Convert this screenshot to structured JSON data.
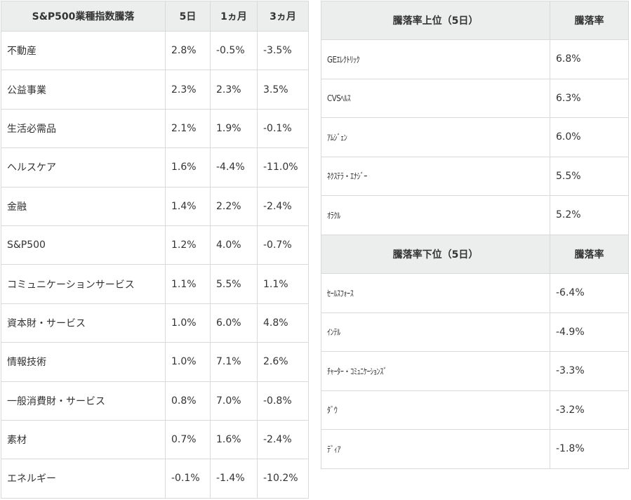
{
  "sector_table": {
    "headers": [
      "S&P500業種指数騰落",
      "5日",
      "1ヵ月",
      "3ヵ月"
    ],
    "rows": [
      {
        "name": "不動産",
        "d5": "2.8%",
        "m1": "-0.5%",
        "m3": "-3.5%"
      },
      {
        "name": "公益事業",
        "d5": "2.3%",
        "m1": "2.3%",
        "m3": "3.5%"
      },
      {
        "name": "生活必需品",
        "d5": "2.1%",
        "m1": "1.9%",
        "m3": "-0.1%"
      },
      {
        "name": "ヘルスケア",
        "d5": "1.6%",
        "m1": "-4.4%",
        "m3": "-11.0%"
      },
      {
        "name": "金融",
        "d5": "1.4%",
        "m1": "2.2%",
        "m3": "-2.4%"
      },
      {
        "name": "S&P500",
        "d5": "1.2%",
        "m1": "4.0%",
        "m3": "-0.7%"
      },
      {
        "name": "コミュニケーションサービス",
        "d5": "1.1%",
        "m1": "5.5%",
        "m3": "1.1%"
      },
      {
        "name": "資本財・サービス",
        "d5": "1.0%",
        "m1": "6.0%",
        "m3": "4.8%"
      },
      {
        "name": "情報技術",
        "d5": "1.0%",
        "m1": "7.1%",
        "m3": "2.6%"
      },
      {
        "name": "一般消費財・サービス",
        "d5": "0.8%",
        "m1": "7.0%",
        "m3": "-0.8%"
      },
      {
        "name": "素材",
        "d5": "0.7%",
        "m1": "1.6%",
        "m3": "-2.4%"
      },
      {
        "name": "エネルギー",
        "d5": "-0.1%",
        "m1": "-1.4%",
        "m3": "-10.2%"
      }
    ]
  },
  "top_table": {
    "headers": [
      "騰落率上位（5日）",
      "騰落率"
    ],
    "rows": [
      {
        "name": "GEｴﾚｸﾄﾘｯｸ",
        "rate": "6.8%"
      },
      {
        "name": "CVSﾍﾙｽ",
        "rate": "6.3%"
      },
      {
        "name": "ｱﾑｼﾞｪﾝ",
        "rate": "6.0%"
      },
      {
        "name": "ﾈｸｽﾃﾗ・ｴﾅｼﾞｰ",
        "rate": "5.5%"
      },
      {
        "name": "ｵﾗｸﾙ",
        "rate": "5.2%"
      }
    ]
  },
  "bottom_table": {
    "headers": [
      "騰落率下位（5日）",
      "騰落率"
    ],
    "rows": [
      {
        "name": "ｾｰﾙｽﾌｫｰｽ",
        "rate": "-6.4%"
      },
      {
        "name": "ｲﾝﾃﾙ",
        "rate": "-4.9%"
      },
      {
        "name": "ﾁｬｰﾀｰ・ｺﾐｭﾆｹｰｼｮﾝｽﾞ",
        "rate": "-3.3%"
      },
      {
        "name": "ﾀﾞｳ",
        "rate": "-3.2%"
      },
      {
        "name": "ﾃﾞｨｱ",
        "rate": "-1.8%"
      }
    ]
  }
}
